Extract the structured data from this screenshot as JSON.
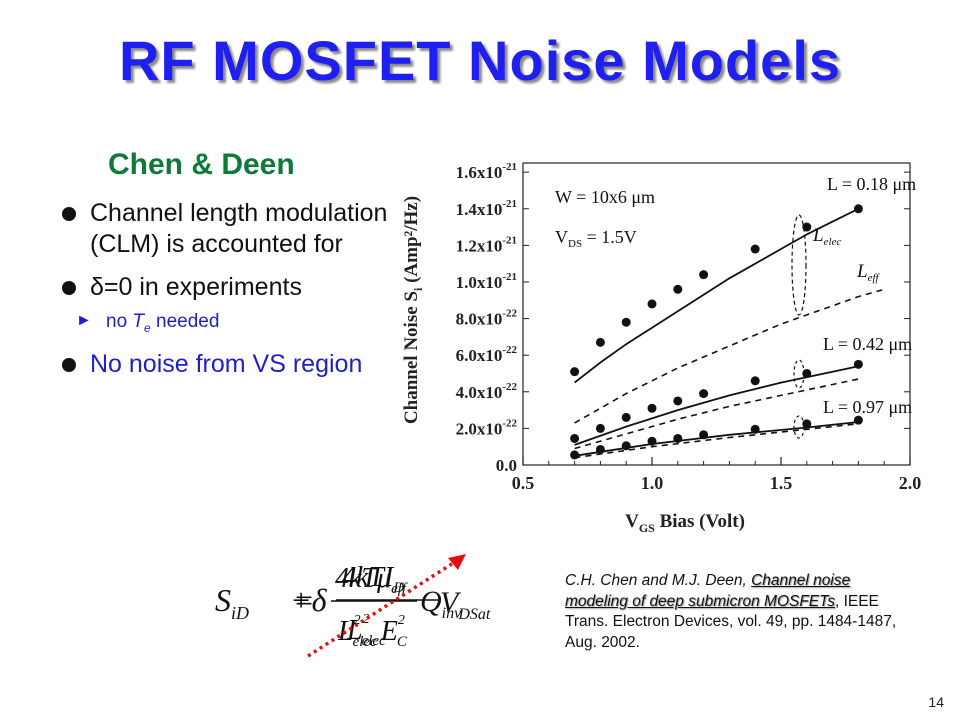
{
  "slide": {
    "title": "RF MOSFET Noise Models",
    "subtitle": "Chen & Deen",
    "page_number": "14"
  },
  "bullets": [
    {
      "text": "Channel length modulation (CLM) is accounted for",
      "color": "#111111"
    },
    {
      "text": "δ=0 in experiments",
      "color": "#111111"
    },
    {
      "text": "No noise from VS region",
      "color": "#1f1fc8"
    }
  ],
  "sub_bullet": {
    "prefix": "no ",
    "symbol": "T",
    "subscript": "e",
    "suffix": " needed"
  },
  "citation": {
    "authors": "C.H. Chen and M.J. Deen, ",
    "paper_title": "Channel noise modeling of deep submicron MOSFETs",
    "journal": ", IEEE Trans. Electron Devices, vol. 49, pp. 1484-1487, Aug. 2002."
  },
  "equation": {
    "lhs": "S",
    "lhs_sub": "iD",
    "eq": "=",
    "t1_num": "4kTμ",
    "t1_num_sub": "eff",
    "t1_den": "L",
    "t1_den_sup": "2",
    "t1_den_sub": "elec",
    "t1_factor": "Q",
    "t1_factor_sub": "inv",
    "plus": "+δ",
    "t2_num": "4kTI",
    "t2_num_sub": "D",
    "t2_den_a": "L",
    "t2_den_a_sup": "2",
    "t2_den_a_sub": "elec",
    "t2_den_b": "E",
    "t2_den_b_sup": "2",
    "t2_den_b_sub": "C",
    "t2_factor": "V",
    "t2_factor_sub": "DSat"
  },
  "chart_data": {
    "type": "scatter",
    "xlabel": "V",
    "xlabel_sub": "GS",
    "xlabel_rest": " Bias (Volt)",
    "ylabel": "Channel Noise  S",
    "ylabel_sub": "i",
    "ylabel_unit": "  (Amp²/Hz)",
    "xlim": [
      0.5,
      2.0
    ],
    "ylim": [
      0.0,
      1.65e-21
    ],
    "x_ticks": [
      0.5,
      1.0,
      1.5,
      2.0
    ],
    "x_tick_labels": [
      "0.5",
      "1.0",
      "1.5",
      "2.0"
    ],
    "y_ticks": [
      0.0,
      2e-22,
      4e-22,
      6e-22,
      8e-22,
      1e-21,
      1.2e-21,
      1.4e-21,
      1.6e-21
    ],
    "y_tick_labels": [
      {
        "m": "0.0",
        "e": ""
      },
      {
        "m": "2.0x10",
        "e": "-22"
      },
      {
        "m": "4.0x10",
        "e": "-22"
      },
      {
        "m": "6.0x10",
        "e": "-22"
      },
      {
        "m": "8.0x10",
        "e": "-22"
      },
      {
        "m": "1.0x10",
        "e": "-21"
      },
      {
        "m": "1.2x10",
        "e": "-21"
      },
      {
        "m": "1.4x10",
        "e": "-21"
      },
      {
        "m": "1.6x10",
        "e": "-21"
      }
    ],
    "annotations": [
      {
        "text": "W = 10x6 μm"
      },
      {
        "text": "V",
        "sub": "DS",
        "rest": " = 1.5V"
      },
      {
        "text": "L = 0.18 μm"
      },
      {
        "text": "L = 0.42 μm"
      },
      {
        "text": "L = 0.97 μm"
      },
      {
        "text": "L",
        "sub": "elec"
      },
      {
        "text": "L",
        "sub": "eff"
      }
    ],
    "series": [
      {
        "name": "L = 0.18 μm",
        "style": "points",
        "x": [
          0.7,
          0.8,
          0.9,
          1.0,
          1.1,
          1.2,
          1.4,
          1.6,
          1.8
        ],
        "y": [
          5.1e-22,
          6.7e-22,
          7.8e-22,
          8.8e-22,
          9.6e-22,
          1.04e-21,
          1.18e-21,
          1.3e-21,
          1.4e-21
        ]
      },
      {
        "name": "L = 0.18 μm (L_elec model)",
        "style": "solid",
        "x": [
          0.7,
          0.8,
          0.9,
          1.0,
          1.1,
          1.2,
          1.3,
          1.4,
          1.5,
          1.6,
          1.7,
          1.8
        ],
        "y": [
          4.5e-22,
          5.6e-22,
          6.6e-22,
          7.5e-22,
          8.4e-22,
          9.3e-22,
          1.02e-21,
          1.1e-21,
          1.18e-21,
          1.26e-21,
          1.33e-21,
          1.4e-21
        ]
      },
      {
        "name": "L = 0.18 μm (L_eff model)",
        "style": "dashed",
        "x": [
          0.7,
          0.8,
          0.9,
          1.0,
          1.1,
          1.2,
          1.3,
          1.4,
          1.5,
          1.6,
          1.7,
          1.8,
          1.9
        ],
        "y": [
          2.3e-22,
          3.1e-22,
          3.9e-22,
          4.6e-22,
          5.3e-22,
          5.9e-22,
          6.5e-22,
          7.1e-22,
          7.7e-22,
          8.2e-22,
          8.7e-22,
          9.2e-22,
          9.6e-22
        ]
      },
      {
        "name": "L = 0.42 μm",
        "style": "points",
        "x": [
          0.7,
          0.8,
          0.9,
          1.0,
          1.1,
          1.2,
          1.4,
          1.6,
          1.8
        ],
        "y": [
          1.45e-22,
          2e-22,
          2.6e-22,
          3.1e-22,
          3.5e-22,
          3.9e-22,
          4.6e-22,
          5e-22,
          5.5e-22
        ]
      },
      {
        "name": "L = 0.42 μm (L_elec model)",
        "style": "solid",
        "x": [
          0.7,
          0.9,
          1.1,
          1.3,
          1.5,
          1.7,
          1.8
        ],
        "y": [
          1.1e-22,
          2.1e-22,
          3e-22,
          3.8e-22,
          4.5e-22,
          5.1e-22,
          5.4e-22
        ]
      },
      {
        "name": "L = 0.42 μm (L_eff model)",
        "style": "dashed",
        "x": [
          0.7,
          0.9,
          1.1,
          1.3,
          1.5,
          1.7,
          1.8
        ],
        "y": [
          9e-23,
          1.7e-22,
          2.5e-22,
          3.2e-22,
          3.8e-22,
          4.4e-22,
          4.7e-22
        ]
      },
      {
        "name": "L = 0.97 μm",
        "style": "points",
        "x": [
          0.7,
          0.8,
          0.9,
          1.0,
          1.1,
          1.2,
          1.4,
          1.6,
          1.8
        ],
        "y": [
          5.5e-23,
          8.5e-23,
          1.05e-22,
          1.3e-22,
          1.45e-22,
          1.65e-22,
          1.95e-22,
          2.25e-22,
          2.45e-22
        ]
      },
      {
        "name": "L = 0.97 μm (L_elec model)",
        "style": "solid",
        "x": [
          0.7,
          1.0,
          1.3,
          1.6,
          1.8
        ],
        "y": [
          5e-23,
          1.15e-22,
          1.65e-22,
          2.05e-22,
          2.35e-22
        ]
      },
      {
        "name": "L = 0.97 μm (L_eff model)",
        "style": "dashed",
        "x": [
          0.7,
          1.0,
          1.3,
          1.6,
          1.8
        ],
        "y": [
          4e-23,
          1e-22,
          1.5e-22,
          1.95e-22,
          2.25e-22
        ]
      }
    ]
  }
}
